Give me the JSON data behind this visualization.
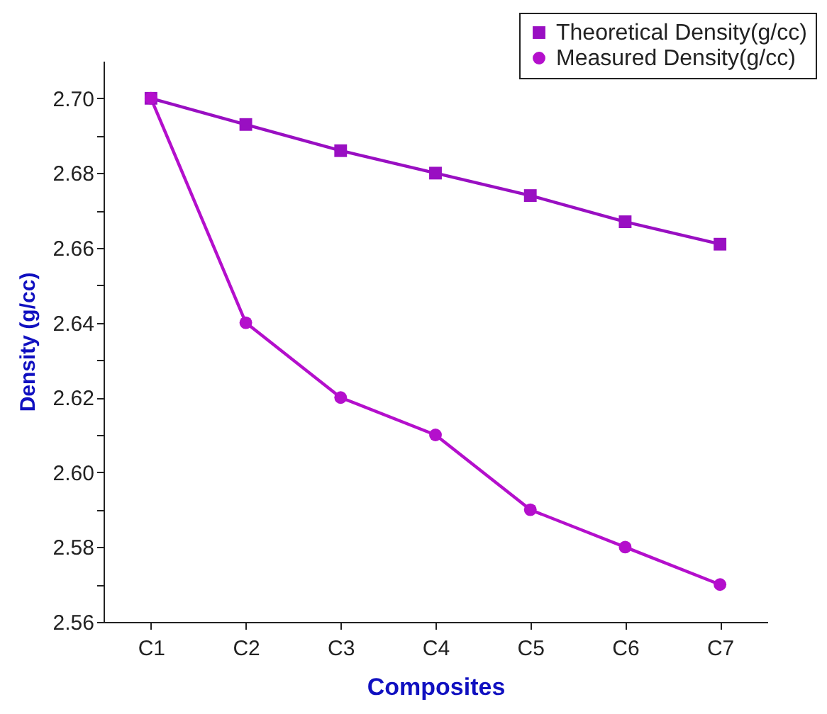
{
  "chart_data": {
    "type": "line",
    "xlabel": "Composites",
    "ylabel": "Density (g/cc)",
    "categories": [
      "C1",
      "C2",
      "C3",
      "C4",
      "C5",
      "C6",
      "C7"
    ],
    "series": [
      {
        "name": "Theoretical Density(g/cc)",
        "color": "#990fc2",
        "marker": "square",
        "values": [
          2.7,
          2.693,
          2.686,
          2.68,
          2.674,
          2.667,
          2.661
        ]
      },
      {
        "name": "Measured Density(g/cc)",
        "color": "#b40fcc",
        "marker": "circle",
        "values": [
          2.7,
          2.64,
          2.62,
          2.61,
          2.59,
          2.58,
          2.57
        ]
      }
    ],
    "ylim": [
      2.56,
      2.71
    ],
    "yticks": [
      {
        "value": 2.56,
        "label": "2.56"
      },
      {
        "value": 2.57,
        "label": null
      },
      {
        "value": 2.58,
        "label": "2.58"
      },
      {
        "value": 2.59,
        "label": null
      },
      {
        "value": 2.6,
        "label": "2.60"
      },
      {
        "value": 2.61,
        "label": null
      },
      {
        "value": 2.62,
        "label": "2.62"
      },
      {
        "value": 2.63,
        "label": null
      },
      {
        "value": 2.64,
        "label": "2.64"
      },
      {
        "value": 2.65,
        "label": null
      },
      {
        "value": 2.66,
        "label": "2.66"
      },
      {
        "value": 2.67,
        "label": null
      },
      {
        "value": 2.68,
        "label": "2.68"
      },
      {
        "value": 2.69,
        "label": null
      },
      {
        "value": 2.7,
        "label": "2.70"
      }
    ],
    "grid": false,
    "legend": "top right"
  }
}
